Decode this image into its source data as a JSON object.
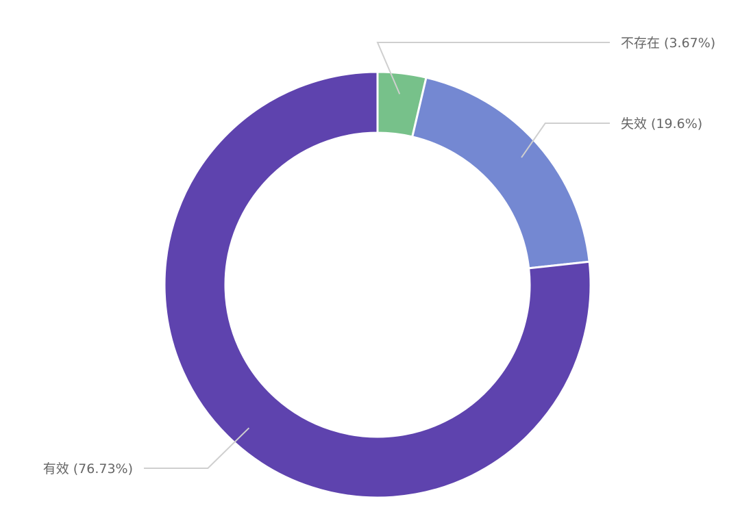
{
  "chart_data": {
    "type": "pie",
    "variant": "donut",
    "title": "",
    "legend": "none",
    "slices": [
      {
        "label": "不存在 (3.67%)",
        "value": 3.67,
        "color": "#77c18a",
        "label_side": "right"
      },
      {
        "label": "失效 (19.6%)",
        "value": 19.6,
        "color": "#7488d2",
        "label_side": "right"
      },
      {
        "label": "有效 (76.73%)",
        "value": 76.73,
        "color": "#5e43ae",
        "label_side": "left"
      }
    ]
  }
}
